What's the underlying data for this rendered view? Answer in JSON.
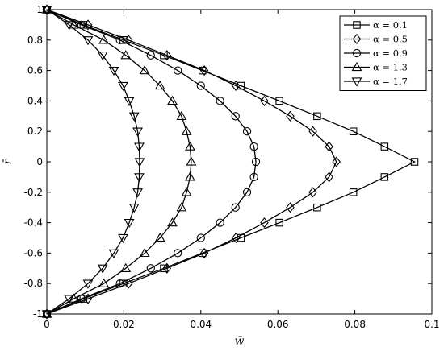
{
  "chart_data": {
    "type": "line",
    "title": "",
    "xlabel": "w̄",
    "ylabel": "r̄",
    "xlim": [
      0,
      0.1
    ],
    "ylim": [
      -1,
      1
    ],
    "xticks": [
      0,
      0.02,
      0.04,
      0.06,
      0.08,
      0.1
    ],
    "xtick_labels": [
      "0",
      "0.02",
      "0.04",
      "0.06",
      "0.08",
      "0.1"
    ],
    "yticks": [
      -1,
      -0.8,
      -0.6,
      -0.4,
      -0.2,
      0,
      0.2,
      0.4,
      0.6,
      0.8,
      1
    ],
    "ytick_labels": [
      "-1",
      "-0.8",
      "-0.6",
      "-0.4",
      "-0.2",
      "0",
      "0.2",
      "0.4",
      "0.6",
      "0.8",
      "1"
    ],
    "grid": false,
    "legend_position": "top-right",
    "series": [
      {
        "name": "α = 0.1",
        "marker": "square",
        "color": "#000000",
        "points": [
          [
            0,
            1
          ],
          [
            0.0095,
            0.9
          ],
          [
            0.0199,
            0.8
          ],
          [
            0.0304,
            0.7
          ],
          [
            0.0404,
            0.6
          ],
          [
            0.0504,
            0.5
          ],
          [
            0.0604,
            0.4
          ],
          [
            0.0702,
            0.3
          ],
          [
            0.0796,
            0.2
          ],
          [
            0.0877,
            0.1
          ],
          [
            0.0955,
            0
          ],
          [
            0.0877,
            -0.1
          ],
          [
            0.0796,
            -0.2
          ],
          [
            0.0702,
            -0.3
          ],
          [
            0.0604,
            -0.4
          ],
          [
            0.0504,
            -0.5
          ],
          [
            0.0404,
            -0.6
          ],
          [
            0.0304,
            -0.7
          ],
          [
            0.0199,
            -0.8
          ],
          [
            0.0095,
            -0.9
          ],
          [
            0,
            -1
          ]
        ]
      },
      {
        "name": "α = 0.5",
        "marker": "diamond",
        "color": "#000000",
        "points": [
          [
            0,
            1
          ],
          [
            0.0107,
            0.9
          ],
          [
            0.0212,
            0.8
          ],
          [
            0.0312,
            0.7
          ],
          [
            0.0409,
            0.6
          ],
          [
            0.0491,
            0.5
          ],
          [
            0.0565,
            0.4
          ],
          [
            0.0632,
            0.3
          ],
          [
            0.0691,
            0.2
          ],
          [
            0.0733,
            0.1
          ],
          [
            0.0752,
            0
          ],
          [
            0.0733,
            -0.1
          ],
          [
            0.0691,
            -0.2
          ],
          [
            0.0632,
            -0.3
          ],
          [
            0.0565,
            -0.4
          ],
          [
            0.0491,
            -0.5
          ],
          [
            0.0409,
            -0.6
          ],
          [
            0.0312,
            -0.7
          ],
          [
            0.0212,
            -0.8
          ],
          [
            0.0107,
            -0.9
          ],
          [
            0,
            -1
          ]
        ]
      },
      {
        "name": "α = 0.9",
        "marker": "circle",
        "color": "#000000",
        "points": [
          [
            0,
            1
          ],
          [
            0.009,
            0.9
          ],
          [
            0.019,
            0.8
          ],
          [
            0.027,
            0.7
          ],
          [
            0.034,
            0.6
          ],
          [
            0.04,
            0.5
          ],
          [
            0.045,
            0.4
          ],
          [
            0.049,
            0.3
          ],
          [
            0.052,
            0.2
          ],
          [
            0.0538,
            0.1
          ],
          [
            0.0543,
            0
          ],
          [
            0.0538,
            -0.1
          ],
          [
            0.052,
            -0.2
          ],
          [
            0.049,
            -0.3
          ],
          [
            0.045,
            -0.4
          ],
          [
            0.04,
            -0.5
          ],
          [
            0.034,
            -0.6
          ],
          [
            0.027,
            -0.7
          ],
          [
            0.019,
            -0.8
          ],
          [
            0.009,
            -0.9
          ],
          [
            0,
            -1
          ]
        ]
      },
      {
        "name": "α = 1.3",
        "marker": "triangle-up",
        "color": "#000000",
        "points": [
          [
            0,
            1
          ],
          [
            0.007,
            0.9
          ],
          [
            0.0148,
            0.8
          ],
          [
            0.0205,
            0.7
          ],
          [
            0.0254,
            0.6
          ],
          [
            0.0294,
            0.5
          ],
          [
            0.0326,
            0.4
          ],
          [
            0.035,
            0.3
          ],
          [
            0.0363,
            0.2
          ],
          [
            0.0372,
            0.1
          ],
          [
            0.0375,
            0
          ],
          [
            0.0372,
            -0.1
          ],
          [
            0.0363,
            -0.2
          ],
          [
            0.035,
            -0.3
          ],
          [
            0.0326,
            -0.4
          ],
          [
            0.0294,
            -0.5
          ],
          [
            0.0254,
            -0.6
          ],
          [
            0.0205,
            -0.7
          ],
          [
            0.0148,
            -0.8
          ],
          [
            0.007,
            -0.9
          ],
          [
            0,
            -1
          ]
        ]
      },
      {
        "name": "α = 1.7",
        "marker": "triangle-down",
        "color": "#000000",
        "points": [
          [
            0,
            1
          ],
          [
            0.0058,
            0.9
          ],
          [
            0.0107,
            0.8
          ],
          [
            0.0145,
            0.7
          ],
          [
            0.0174,
            0.6
          ],
          [
            0.0198,
            0.5
          ],
          [
            0.0214,
            0.4
          ],
          [
            0.0227,
            0.3
          ],
          [
            0.0236,
            0.2
          ],
          [
            0.024,
            0.1
          ],
          [
            0.0241,
            0
          ],
          [
            0.024,
            -0.1
          ],
          [
            0.0236,
            -0.2
          ],
          [
            0.0227,
            -0.3
          ],
          [
            0.0214,
            -0.4
          ],
          [
            0.0198,
            -0.5
          ],
          [
            0.0174,
            -0.6
          ],
          [
            0.0145,
            -0.7
          ],
          [
            0.0107,
            -0.8
          ],
          [
            0.0058,
            -0.9
          ],
          [
            0,
            -1
          ]
        ]
      }
    ]
  }
}
